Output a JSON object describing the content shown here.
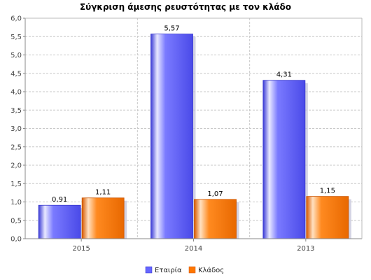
{
  "chart_data": {
    "type": "bar",
    "title": "Σύγκριση άμεσης ρευστότητας με τον κλάδο",
    "xlabel": "",
    "ylabel": "",
    "categories": [
      "2015",
      "2014",
      "2013"
    ],
    "series": [
      {
        "name": "Εταιρία",
        "values": [
          0.91,
          5.57,
          4.31
        ],
        "value_labels": [
          "0,91",
          "5,57",
          "4,31"
        ],
        "color": "#6666ff"
      },
      {
        "name": "Κλάδος",
        "values": [
          1.11,
          1.07,
          1.15
        ],
        "value_labels": [
          "1,11",
          "1,07",
          "1,15"
        ],
        "color": "#ff7700"
      }
    ],
    "ylim": [
      0,
      6.0
    ],
    "yticks": [
      0.0,
      0.5,
      1.0,
      1.5,
      2.0,
      2.5,
      3.0,
      3.5,
      4.0,
      4.5,
      5.0,
      5.5,
      6.0
    ],
    "ytick_labels": [
      "0,0",
      "0,5",
      "1,0",
      "1,5",
      "2,0",
      "2,5",
      "3,0",
      "3,5",
      "4,0",
      "4,5",
      "5,0",
      "5,5",
      "6,0"
    ],
    "grid": true,
    "legend_position": "bottom-center"
  }
}
